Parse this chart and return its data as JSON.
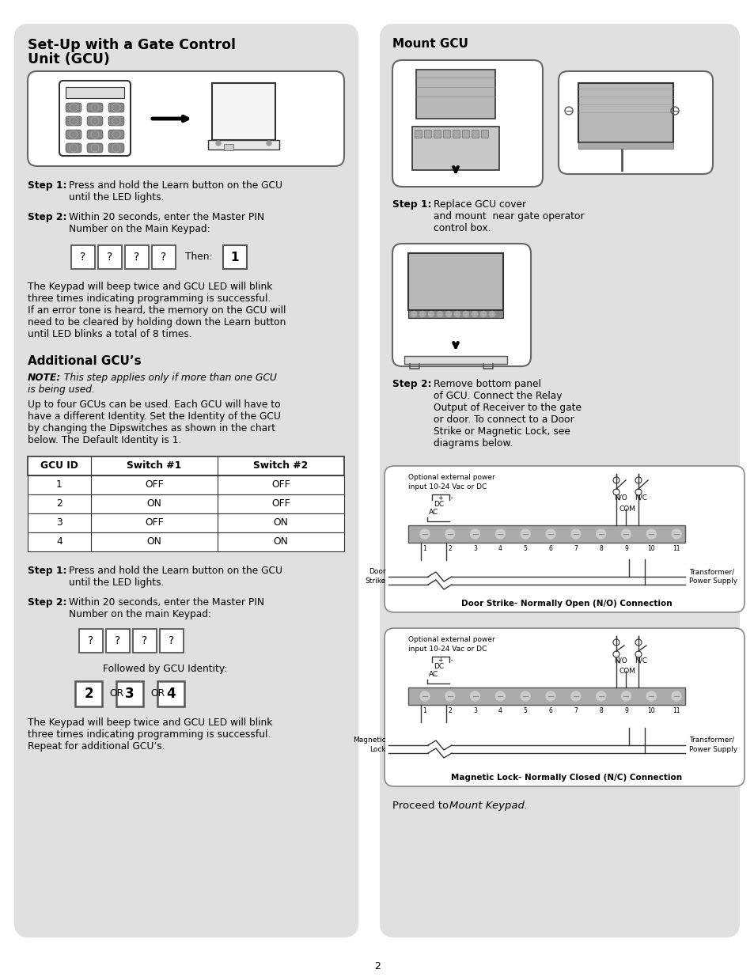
{
  "page_bg": "#ffffff",
  "panel_bg": "#e0e0e0",
  "text_color": "#000000",
  "title_left": "Set-Up with a Gate Control\nUnit (GCU)",
  "title_right": "Mount GCU",
  "section2_title": "Additional GCU’s",
  "step1_text": "Press and hold the Learn button on the GCU until the LED lights.",
  "step2_text_1": "Within 20 seconds, enter the Master PIN Number on the Main Keypad:",
  "body1": "The Keypad will beep twice and GCU LED will blink three times indicating programming is successful. If an error tone is heard, the memory on the GCU will need to be cleared by holding down the Learn button until LED blinks a total of 8 times.",
  "note_bold": "NOTE:",
  "note_italic": " This step applies only if more than one GCU is being used.",
  "body2": "Up to four GCUs can be used. Each GCU will have to have a different Identity. Set the Identity of the GCU by changing the Dipswitches as shown in the chart below. The Default Identity is 1.",
  "table_headers": [
    "GCU ID",
    "Switch #1",
    "Switch #2"
  ],
  "table_rows": [
    [
      "1",
      "OFF",
      "OFF"
    ],
    [
      "2",
      "ON",
      "OFF"
    ],
    [
      "3",
      "OFF",
      "ON"
    ],
    [
      "4",
      "ON",
      "ON"
    ]
  ],
  "step1_2_text": "Press and hold the Learn button on the GCU until the LED lights.",
  "step2_2_text": "Within 20 seconds, enter the Master PIN Number on the main Keypad:",
  "followed_by": "Followed by GCU Identity:",
  "body3": "The Keypad will beep twice and GCU LED will blink three times indicating programming is successful. Repeat for additional GCU’s.",
  "step1_right_text": "Replace GCU cover and mount  near gate operator control box.",
  "step2_right_text": "Remove bottom panel of GCU. Connect the Relay Output of Receiver to the gate or door. To connect to a Door Strike or Magnetic Lock, see diagrams below.",
  "diag1_label": "Optional external power\ninput 10-24 Vac or DC",
  "diag1_title": "Door Strike- Normally Open (N/O) Connection",
  "diag2_label": "Optional external power\ninput 10-24 Vac or DC",
  "diag2_title": "Magnetic Lock- Normally Closed (N/C) Connection",
  "proceed_text1": "Proceed to ",
  "proceed_text2": "Mount Keypad.",
  "page_number": "2"
}
